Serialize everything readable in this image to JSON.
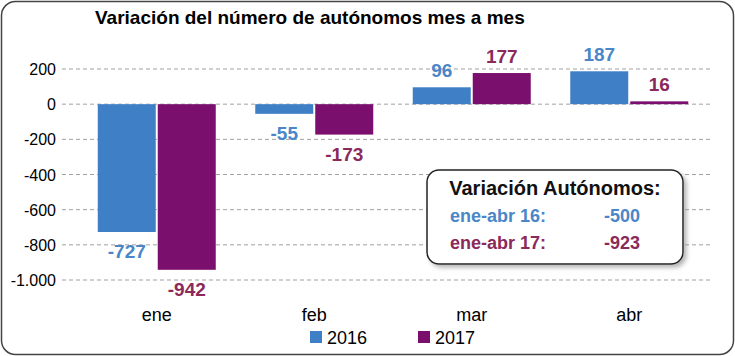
{
  "chart_data": {
    "type": "bar",
    "title": "Variación del número de autónomos mes a mes",
    "categories": [
      "ene",
      "feb",
      "mar",
      "abr"
    ],
    "series": [
      {
        "name": "2016",
        "color": "#3f7fc6",
        "values": [
          -727,
          -55,
          96,
          187
        ]
      },
      {
        "name": "2017",
        "color": "#7a0f6e",
        "values": [
          -942,
          -173,
          177,
          16
        ]
      }
    ],
    "ylim": [
      -1000,
      200
    ],
    "yticks": [
      200,
      0,
      -200,
      -400,
      -600,
      -800,
      {
        "value": -1000,
        "label": "-1.000"
      }
    ],
    "grid": true,
    "data_labels": true,
    "legend": "bottom",
    "annotation": {
      "title": "Variación Autónomos:",
      "items": [
        {
          "label": "ene-abr 16:",
          "value": -500
        },
        {
          "label": "ene-abr 17:",
          "value": -923
        }
      ]
    }
  }
}
